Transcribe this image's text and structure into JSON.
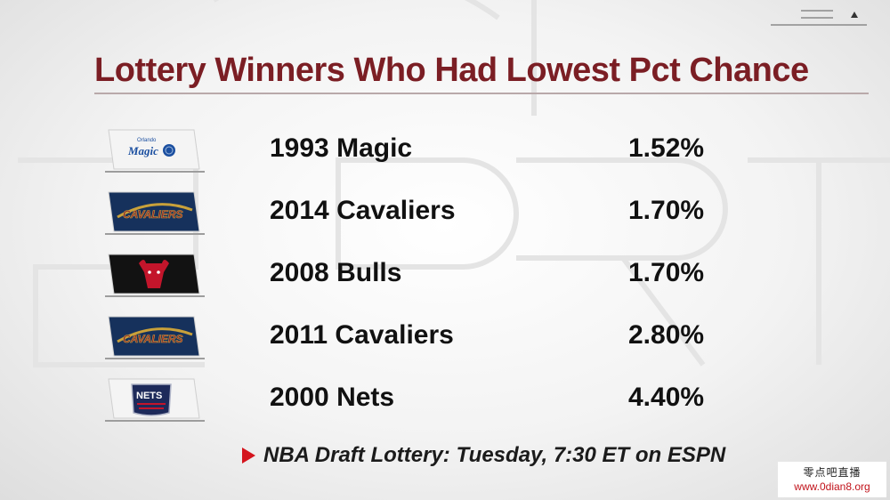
{
  "title": "Lottery Winners Who Had Lowest Pct Chance",
  "rows": [
    {
      "team": "1993 Magic",
      "pct": "1.52%",
      "logo_icon": "orlando-magic-logo-icon",
      "logo_text": "Magic",
      "logo_small_text": "Orlando",
      "logo_bg": "#f4f4f4",
      "logo_fg": "#1b4fa0"
    },
    {
      "team": "2014 Cavaliers",
      "pct": "1.70%",
      "logo_icon": "cleveland-cavaliers-logo-icon",
      "logo_text": "CAVALIERS",
      "logo_bg": "#16315c",
      "logo_fg": "#8a1f2d"
    },
    {
      "team": "2008 Bulls",
      "pct": "1.70%",
      "logo_icon": "chicago-bulls-logo-icon",
      "logo_bg": "#121212",
      "logo_fg": "#c3152b"
    },
    {
      "team": "2011 Cavaliers",
      "pct": "2.80%",
      "logo_icon": "cleveland-cavaliers-logo-icon",
      "logo_text": "CAVALIERS",
      "logo_bg": "#16315c",
      "logo_fg": "#8a1f2d"
    },
    {
      "team": "2000 Nets",
      "pct": "4.40%",
      "logo_icon": "new-jersey-nets-logo-icon",
      "logo_text": "NETS",
      "logo_bg": "#f4f4f4",
      "logo_fg": "#1d2a5a"
    }
  ],
  "footer": {
    "text": "NBA Draft Lottery: Tuesday, 7:30 ET on ESPN",
    "accent_color": "#d4141d"
  },
  "watermark": {
    "line1": "零点吧直播",
    "line2": "www.0dian8.org"
  },
  "colors": {
    "title": "#7b1e24",
    "text": "#111111"
  }
}
